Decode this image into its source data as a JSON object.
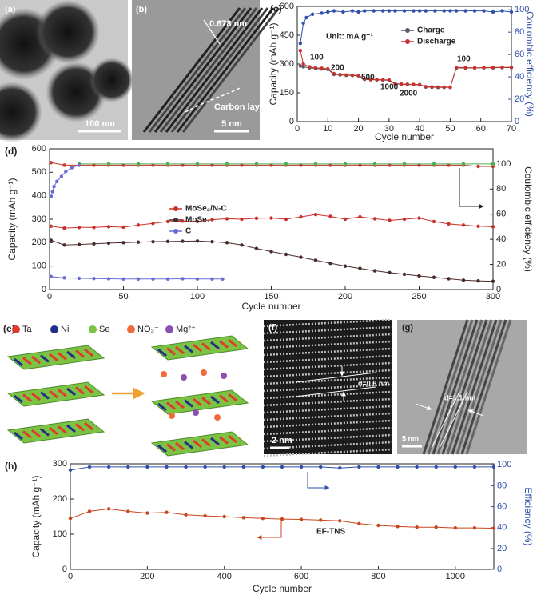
{
  "images": [
    {
      "label": "(a)",
      "scale_bar": "100 nm"
    },
    {
      "label": "(b)",
      "annotations": [
        "0.678 nm",
        "Carbon layer"
      ],
      "scale_bar": "5 nm"
    },
    {
      "label": "(e)",
      "legend": [
        "Ta",
        "Ni",
        "Se",
        "NO₃⁻",
        "Mg²⁺"
      ]
    },
    {
      "label": "(f)",
      "annotations": [
        "d=0.6 nm"
      ],
      "scale_bar": "2 nm"
    },
    {
      "label": "(g)",
      "annotations": [
        "d=1.1 nm"
      ],
      "scale_bar": "5 nm"
    }
  ],
  "chart_data": [
    {
      "type": "line",
      "label": "(c)",
      "xlabel": "Cycle number",
      "ylabel": "Capacity (mAh g⁻¹)",
      "y2label": "Coulombic efficiency (%)",
      "y2color": "#2f4fa8",
      "xlim": [
        0,
        70
      ],
      "xticks": [
        0,
        10,
        20,
        30,
        40,
        50,
        60,
        70
      ],
      "ylim": [
        0,
        600
      ],
      "yticks": [
        0,
        150,
        300,
        450,
        600
      ],
      "y2lim": [
        0,
        103
      ],
      "y2ticks": [
        0,
        20,
        40,
        60,
        80,
        100
      ],
      "legend": "upper center",
      "annotations": [
        "Unit: mA g⁻¹",
        "100",
        "200",
        "500",
        "1000",
        "2000",
        "100"
      ],
      "series": [
        {
          "name": "Charge",
          "color": "#555a66",
          "x": [
            1,
            2,
            4,
            6,
            8,
            10,
            12,
            14,
            16,
            18,
            20,
            22,
            24,
            26,
            28,
            30,
            32,
            34,
            36,
            38,
            40,
            42,
            44,
            46,
            48,
            50,
            52,
            55,
            58,
            61,
            64,
            67,
            70
          ],
          "values": [
            290,
            285,
            280,
            276,
            274,
            272,
            246,
            243,
            241,
            240,
            238,
            220,
            218,
            217,
            216,
            215,
            196,
            194,
            193,
            192,
            191,
            180,
            179,
            178,
            178,
            178,
            279,
            279,
            279,
            280,
            280,
            281,
            281
          ]
        },
        {
          "name": "Discharge",
          "color": "#c8322d",
          "x": [
            1,
            2,
            4,
            6,
            8,
            10,
            12,
            14,
            16,
            18,
            20,
            22,
            24,
            26,
            28,
            30,
            32,
            34,
            36,
            38,
            40,
            42,
            44,
            46,
            48,
            50,
            52,
            55,
            58,
            61,
            64,
            67,
            70
          ],
          "values": [
            370,
            300,
            285,
            280,
            278,
            275,
            250,
            245,
            243,
            242,
            240,
            222,
            220,
            219,
            218,
            217,
            198,
            196,
            195,
            194,
            193,
            182,
            181,
            180,
            180,
            179,
            282,
            281,
            280,
            281,
            282,
            283,
            283
          ]
        },
        {
          "color": "#2f4fa8",
          "axis": "y2",
          "x": [
            1,
            2,
            3,
            5,
            8,
            10,
            12,
            15,
            18,
            20,
            22,
            25,
            28,
            30,
            32,
            35,
            38,
            40,
            42,
            45,
            48,
            50,
            52,
            55,
            58,
            61,
            64,
            67,
            70
          ],
          "values": [
            70,
            88,
            93,
            96,
            97,
            98,
            99,
            98,
            99,
            98,
            99,
            99,
            99,
            99,
            99,
            99,
            99,
            99,
            99,
            99,
            99,
            99,
            99,
            99,
            99,
            99,
            98,
            99,
            98
          ]
        }
      ]
    },
    {
      "type": "line",
      "label": "(d)",
      "xlabel": "Cycle number",
      "ylabel": "Capacity (mAh g⁻¹)",
      "y2label": "Coulombic efficiency (%)",
      "y2color": "#222222",
      "xlim": [
        0,
        300
      ],
      "xticks": [
        0,
        50,
        100,
        150,
        200,
        250,
        300
      ],
      "ylim": [
        0,
        600
      ],
      "yticks": [
        0,
        100,
        200,
        300,
        400,
        500,
        600
      ],
      "y2lim": [
        0,
        112
      ],
      "y2ticks": [
        0,
        20,
        40,
        60,
        80,
        100
      ],
      "legend": "center left",
      "series": [
        {
          "name": "MoSe₂/N-C",
          "color": "#c8322d",
          "x": [
            1,
            10,
            20,
            30,
            40,
            50,
            60,
            70,
            80,
            90,
            100,
            110,
            120,
            130,
            140,
            150,
            160,
            170,
            180,
            190,
            200,
            210,
            220,
            230,
            240,
            250,
            260,
            270,
            280,
            290,
            300
          ],
          "values": [
            270,
            262,
            265,
            265,
            268,
            266,
            275,
            282,
            290,
            292,
            290,
            298,
            302,
            300,
            304,
            305,
            300,
            310,
            320,
            312,
            300,
            310,
            302,
            295,
            300,
            305,
            290,
            280,
            275,
            270,
            268
          ]
        },
        {
          "name": "MoSe₂",
          "color": "#4a2a2a",
          "x": [
            1,
            10,
            20,
            30,
            40,
            50,
            60,
            70,
            80,
            90,
            100,
            110,
            120,
            130,
            140,
            150,
            160,
            170,
            180,
            190,
            200,
            210,
            220,
            230,
            240,
            250,
            260,
            270,
            280,
            290,
            300
          ],
          "values": [
            210,
            190,
            192,
            195,
            198,
            200,
            202,
            204,
            205,
            206,
            207,
            204,
            200,
            190,
            175,
            162,
            150,
            138,
            125,
            112,
            100,
            90,
            80,
            72,
            65,
            58,
            52,
            46,
            40,
            37,
            35
          ]
        },
        {
          "name": "C",
          "color": "#6b6bd8",
          "x": [
            1,
            10,
            20,
            30,
            40,
            50,
            60,
            70,
            80,
            90,
            100,
            110,
            117
          ],
          "values": [
            55,
            50,
            48,
            47,
            46,
            45,
            45,
            45,
            45,
            46,
            45,
            45,
            45
          ]
        },
        {
          "color": "#c8322d",
          "axis": "y2",
          "x": [
            1,
            10,
            20,
            30,
            40,
            50,
            60,
            70,
            80,
            90,
            100,
            110,
            120,
            130,
            140,
            150,
            160,
            170,
            180,
            190,
            200,
            210,
            220,
            230,
            240,
            250,
            260,
            270,
            280,
            290,
            300
          ],
          "values": [
            101,
            99,
            99,
            99,
            99,
            99,
            99,
            99,
            99,
            99,
            99,
            99,
            99,
            99,
            99,
            99,
            99,
            99,
            99,
            99,
            99,
            99,
            99,
            99,
            99,
            99,
            99,
            99,
            99,
            98,
            98
          ]
        },
        {
          "color": "#4caf50",
          "axis": "y2",
          "x": [
            20,
            40,
            60,
            80,
            100,
            120,
            140,
            160,
            180,
            200,
            220,
            240,
            260,
            280,
            300
          ],
          "values": [
            100,
            100,
            100,
            100,
            100,
            100,
            100,
            100,
            100,
            100,
            100,
            100,
            100,
            100,
            100
          ]
        },
        {
          "color": "#6b6bd8",
          "axis": "y2",
          "x": [
            1,
            2,
            3,
            5,
            8,
            11,
            15,
            20
          ],
          "values": [
            74,
            78,
            82,
            86,
            90,
            94,
            97,
            99
          ]
        }
      ]
    },
    {
      "type": "line",
      "label": "(h)",
      "xlabel": "Cycle number",
      "ylabel": "Capacity (mAh g⁻¹)",
      "y2label": "Efficiency (%)",
      "y2color": "#2f4fa8",
      "xlim": [
        0,
        1100
      ],
      "xticks": [
        0,
        200,
        400,
        600,
        800,
        1000
      ],
      "ylim": [
        0,
        300
      ],
      "yticks": [
        0,
        100,
        200,
        300
      ],
      "y2lim": [
        0,
        101
      ],
      "y2ticks": [
        0,
        20,
        40,
        60,
        80,
        100
      ],
      "annotations": [
        "EF-TNS"
      ],
      "series": [
        {
          "color": "#c8461e",
          "x": [
            0,
            50,
            100,
            150,
            200,
            250,
            300,
            350,
            400,
            450,
            500,
            550,
            600,
            650,
            700,
            750,
            800,
            850,
            900,
            950,
            1000,
            1050,
            1100
          ],
          "values": [
            145,
            165,
            172,
            165,
            160,
            162,
            155,
            152,
            150,
            147,
            145,
            143,
            142,
            140,
            138,
            130,
            125,
            122,
            120,
            120,
            118,
            118,
            117
          ]
        },
        {
          "color": "#2f4fa8",
          "axis": "y2",
          "x": [
            0,
            50,
            100,
            150,
            200,
            250,
            300,
            350,
            400,
            450,
            500,
            550,
            600,
            650,
            700,
            750,
            800,
            850,
            900,
            950,
            1000,
            1050,
            1100
          ],
          "values": [
            95,
            98,
            98,
            98,
            98,
            98,
            98,
            98,
            98,
            98,
            98,
            98,
            98,
            98,
            97,
            98,
            98,
            98,
            98,
            98,
            98,
            98,
            98
          ]
        }
      ]
    }
  ]
}
